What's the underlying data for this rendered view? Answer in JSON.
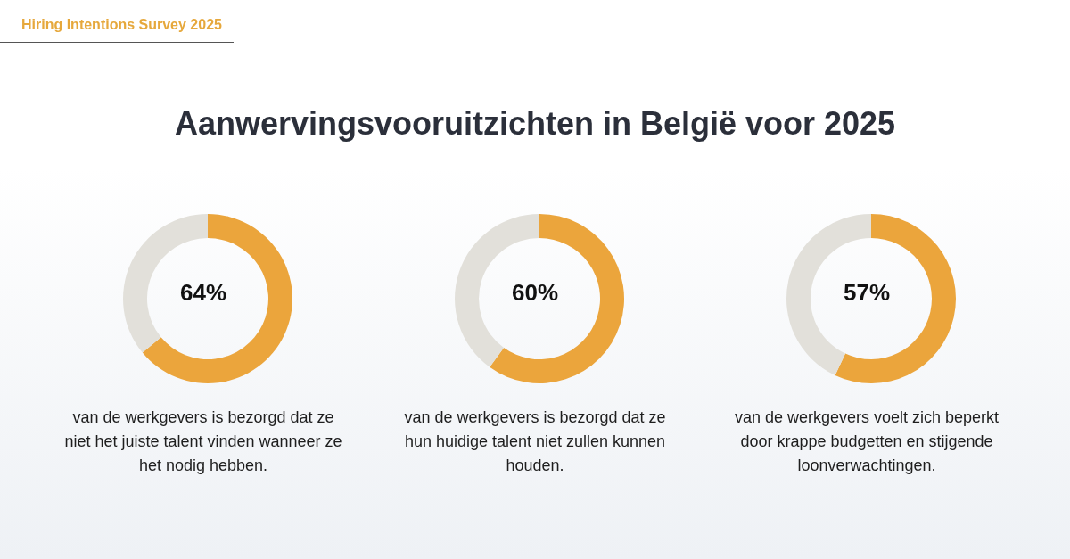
{
  "chart_data": [
    {
      "type": "donut",
      "title": "Aanwervingsvooruitzichten in België voor 2025",
      "annotations": [
        "Hiring Intentions Survey 2025",
        "64%",
        "van de werkgevers is bezorgd dat ze niet het juiste talent vinden wanneer ze het nodig hebben."
      ],
      "categories": [
        null,
        null
      ],
      "values": [
        64,
        36
      ],
      "colors": [
        "#eba53c",
        "#e2e0da"
      ]
    },
    {
      "type": "donut",
      "annotations": [
        "60%",
        "van de werkgevers is bezorgd dat ze hun huidige talent niet zullen kunnen houden."
      ],
      "categories": [
        null,
        null
      ],
      "values": [
        60,
        40
      ],
      "colors": [
        "#eba53c",
        "#e2e0da"
      ]
    },
    {
      "type": "donut",
      "annotations": [
        "57%",
        "van de werkgevers voelt zich beperkt door krappe budgetten en stijgende loonverwachtingen."
      ],
      "categories": [
        null,
        null
      ],
      "values": [
        57,
        43
      ],
      "colors": [
        "#eba53c",
        "#e2e0da"
      ]
    }
  ]
}
